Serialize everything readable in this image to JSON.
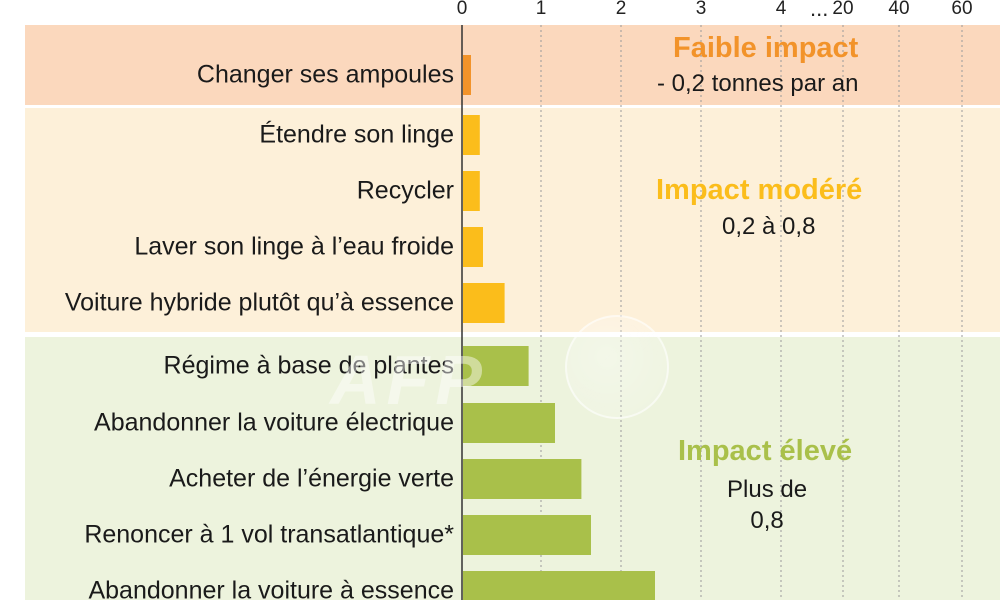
{
  "chart_data": {
    "type": "bar",
    "orientation": "horizontal",
    "axis_scale": "broken (linear 0–4, then 20, 40, 60)",
    "x_ticks": [
      "0",
      "1",
      "2",
      "3",
      "4",
      "20",
      "40",
      "60"
    ],
    "x_tick_values": [
      0,
      1,
      2,
      3,
      4,
      20,
      40,
      60
    ],
    "axis_break_marker": "...",
    "grid": "dotted vertical",
    "categories": [
      "Changer ses ampoules",
      "Étendre son linge",
      "Recycler",
      "Laver son linge à l’eau froide",
      "Voiture hybride plutôt qu’à essence",
      "Régime à base de plantes",
      "Abandonner la voiture électrique",
      "Acheter de l’énergie verte",
      "Renoncer à 1 vol transatlantique*",
      "Abandonner la voiture à essence"
    ],
    "values": [
      0.1,
      0.21,
      0.21,
      0.25,
      0.52,
      0.82,
      1.15,
      1.48,
      1.6,
      2.4
    ],
    "groups": [
      {
        "title": "Faible impact",
        "subtitle": "- 0,2 tonnes par an",
        "color": "#f2932a",
        "band_color": "#fbd8bd",
        "count": 1
      },
      {
        "title": "Impact modéré",
        "subtitle": "0,2 à 0,8",
        "color": "#fbbd1b",
        "band_color": "#fdf0d9",
        "count": 4
      },
      {
        "title": "Impact élevé",
        "subtitle": "Plus de\n0,8",
        "color": "#a9c04a",
        "band_color": "#edf3dd",
        "count": 5
      }
    ]
  },
  "watermark": "AFP"
}
